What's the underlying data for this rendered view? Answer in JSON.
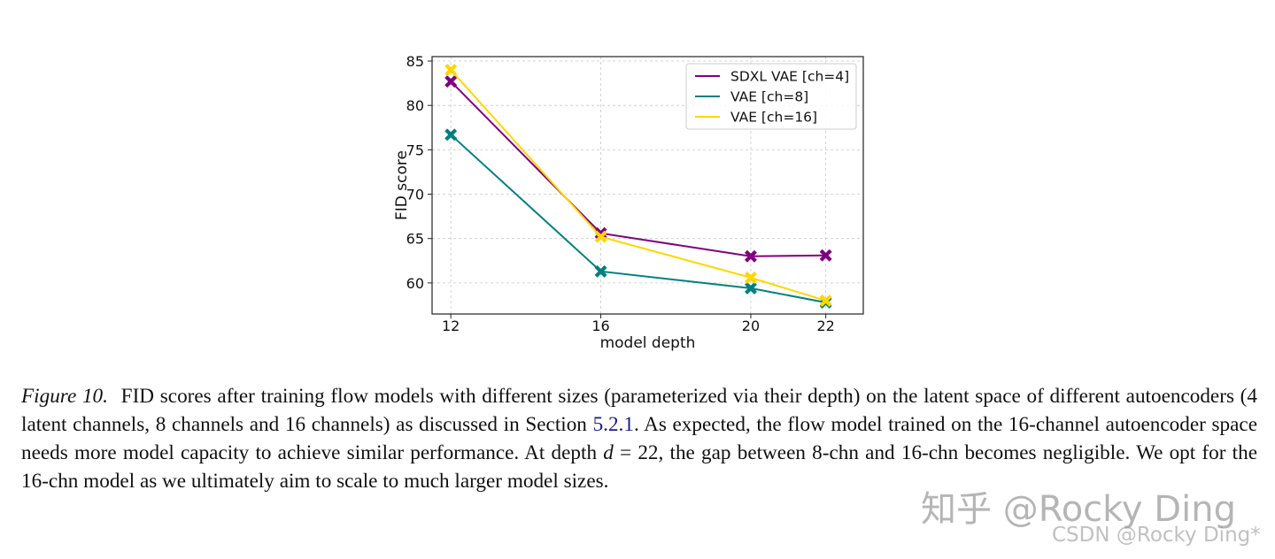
{
  "chart_data": {
    "type": "line",
    "x": [
      12,
      16,
      20,
      22
    ],
    "xticks": [
      "12",
      "16",
      "20",
      "22"
    ],
    "yticks": [
      "60",
      "65",
      "70",
      "75",
      "80",
      "85"
    ],
    "xlabel": "model depth",
    "ylabel": "FID score",
    "xlim": [
      11.5,
      23
    ],
    "ylim": [
      56.5,
      85.5
    ],
    "grid": true,
    "legend_position": "top-right",
    "series": [
      {
        "name": "SDXL VAE [ch=4]",
        "values": [
          82.7,
          65.6,
          63.0,
          63.1
        ],
        "color": "#800080"
      },
      {
        "name": "VAE [ch=8]",
        "values": [
          76.7,
          61.3,
          59.4,
          57.8
        ],
        "color": "#008080"
      },
      {
        "name": "VAE [ch=16]",
        "values": [
          84.0,
          65.2,
          60.6,
          58.0
        ],
        "color": "#FFD700"
      }
    ]
  },
  "caption": {
    "label": "Figure 10.",
    "part1": "FID scores after training flow models with different sizes (parameterized via their depth) on the latent space of different autoencoders (4 latent channels, 8 channels and 16 channels) as discussed in Section ",
    "ref": "5.2.1",
    "part2": ". As expected, the flow model trained on the 16-channel autoencoder space needs more model capacity to achieve similar performance. At depth ",
    "math_var": "d",
    "math_rest": " = 22",
    "part3": ", the gap between 8-chn and 16-chn becomes negligible. We opt for the 16-chn model as we ultimately aim to scale to much larger model sizes."
  },
  "watermarks": {
    "zhihu": "知乎 @Rocky Ding",
    "csdn": "CSDN @Rocky Ding*"
  }
}
